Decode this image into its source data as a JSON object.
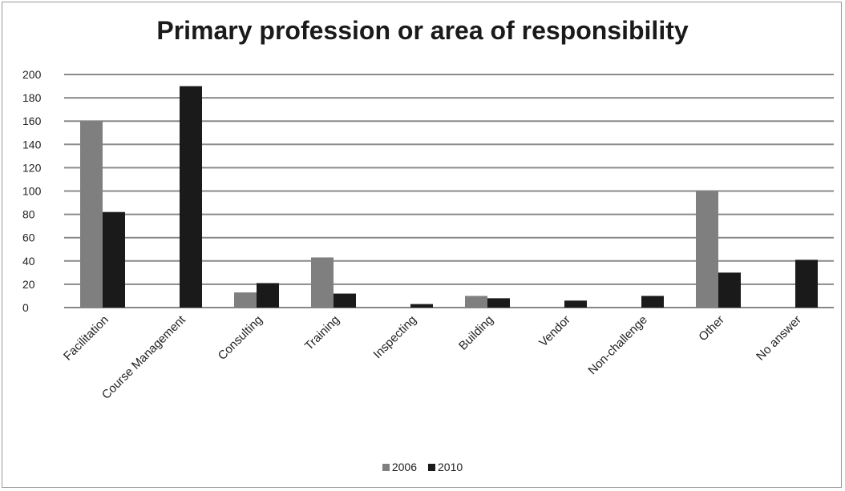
{
  "chart_data": {
    "type": "bar",
    "title": "Primary profession or area of responsibility",
    "xlabel": "",
    "ylabel": "",
    "ylim": [
      0,
      200
    ],
    "yticks": [
      0,
      20,
      40,
      60,
      80,
      100,
      120,
      140,
      160,
      180,
      200
    ],
    "grid": true,
    "legend_position": "bottom",
    "categories": [
      "Facilitation",
      "Course Management",
      "Consulting",
      "Training",
      "Inspecting",
      "Building",
      "Vendor",
      "Non-challenge",
      "Other",
      "No answer"
    ],
    "series": [
      {
        "name": "2006",
        "color": "#7f7f7f",
        "values": [
          160,
          0,
          13,
          43,
          0,
          10,
          0,
          0,
          100,
          0
        ]
      },
      {
        "name": "2010",
        "color": "#1a1a1a",
        "values": [
          82,
          190,
          21,
          12,
          3,
          8,
          6,
          10,
          30,
          41
        ]
      }
    ]
  }
}
